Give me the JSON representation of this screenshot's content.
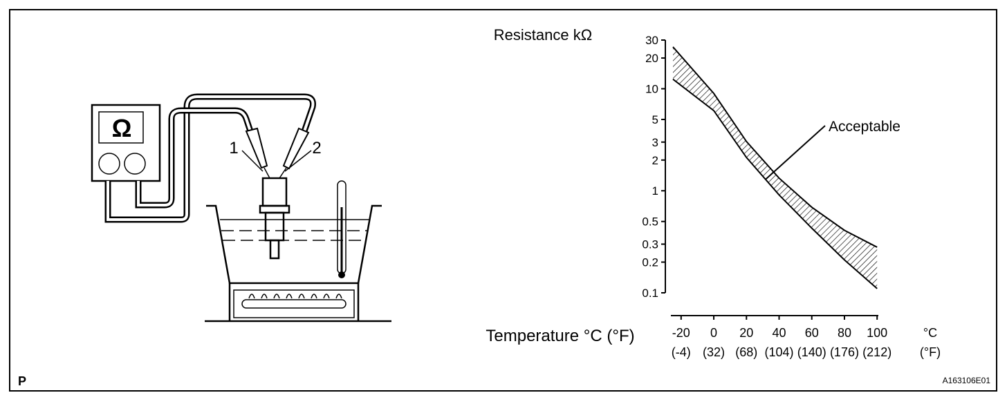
{
  "diagram": {
    "lead_labels": [
      "1",
      "2"
    ],
    "meter_symbol": "Ω",
    "corner_letter": "P",
    "figure_code": "A163106E01"
  },
  "chart_data": {
    "type": "band",
    "y_label": "Resistance kΩ",
    "x_label": "Temperature °C (°F)",
    "x_unit": "°C",
    "x_alt_unit": "(°F)",
    "annotation": "Acceptable",
    "x": [
      -25,
      0,
      20,
      40,
      60,
      80,
      100
    ],
    "series": [
      {
        "values": [
          25.7,
          9.0,
          3.04,
          1.33,
          0.69,
          0.41,
          0.28
        ]
      },
      {
        "values": [
          12.4,
          6.1,
          2.12,
          0.91,
          0.43,
          0.21,
          0.11
        ]
      }
    ],
    "color": "#000000",
    "log_y": true,
    "xlim": [
      -25,
      105
    ],
    "xticks": [
      -20,
      0,
      20,
      40,
      60,
      80,
      100
    ],
    "x_alt_labels": [
      "(-4)",
      "(32)",
      "(68)",
      "(104)",
      "(140)",
      "(176)",
      "(212)"
    ],
    "ylim": [
      0.1,
      30
    ],
    "yticks": [
      30,
      20,
      10,
      5,
      3,
      2,
      1,
      0.5,
      0.3,
      0.2,
      0.1
    ]
  }
}
